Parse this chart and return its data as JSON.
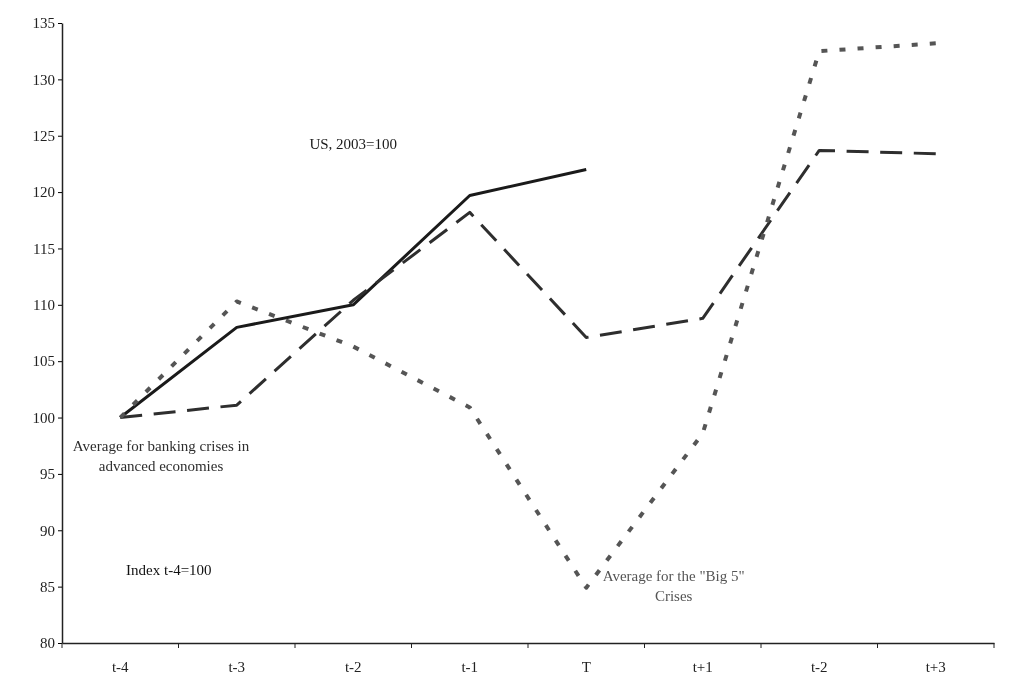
{
  "chart_data": {
    "type": "line",
    "categories": [
      "t-4",
      "t-3",
      "t-2",
      "t-1",
      "T",
      "t+1",
      "t-2",
      "t+3"
    ],
    "series": [
      {
        "name": "US, 2003=100",
        "color": "#1a1a1a",
        "line_style": "solid",
        "values": [
          100,
          108,
          110,
          119.7,
          122,
          null,
          null,
          null
        ]
      },
      {
        "name": "Average for banking crises in advanced economies",
        "color": "#2e2e2e",
        "line_style": "dashed",
        "values": [
          100,
          101.1,
          110.4,
          118.2,
          107.1,
          108.8,
          123.7,
          123.4
        ]
      },
      {
        "name": "Average for the \"Big 5\" Crises",
        "color": "#555555",
        "line_style": "dotted",
        "values": [
          100,
          110.3,
          106.3,
          100.9,
          84.9,
          98.6,
          132.5,
          133.2
        ]
      }
    ],
    "ylim": [
      80,
      135
    ],
    "yticks": [
      80,
      85,
      90,
      95,
      100,
      105,
      110,
      115,
      120,
      125,
      130,
      135
    ],
    "grid": false,
    "marker": "none",
    "annotations": [
      "Index t-4=100"
    ]
  }
}
